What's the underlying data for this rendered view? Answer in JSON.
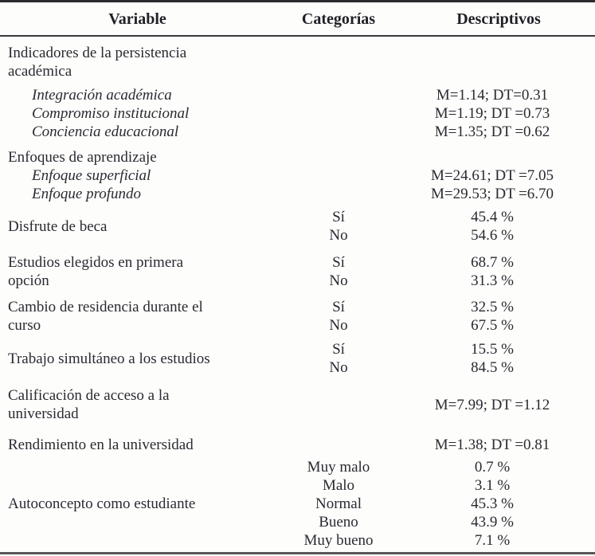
{
  "header": {
    "variable": "Variable",
    "categorias": "Categorías",
    "descriptivos": "Descriptivos"
  },
  "groups": [
    {
      "id": "indicadores-persistencia",
      "title_lines": [
        "Indicadores de la persistencia",
        "académica"
      ],
      "items": [
        {
          "label": "Integración académica",
          "desc": "M=1.14; DT=0.31"
        },
        {
          "label": "Compromiso institucional",
          "desc": "M=1.19; DT =0.73"
        },
        {
          "label": "Conciencia educacional",
          "desc": "M=1.35; DT =0.62"
        }
      ]
    },
    {
      "id": "enfoques-aprendizaje",
      "title_lines": [
        "Enfoques de aprendizaje"
      ],
      "items": [
        {
          "label": "Enfoque superficial",
          "desc": "M=24.61; DT =7.05"
        },
        {
          "label": "Enfoque profundo",
          "desc": "M=29.53; DT =6.70"
        }
      ]
    },
    {
      "id": "disfrute-beca",
      "title_lines": [
        "Disfrute de beca"
      ],
      "cats": [
        "Sí",
        "No"
      ],
      "descs": [
        "45.4 %",
        "54.6 %"
      ]
    },
    {
      "id": "estudios-primera-opcion",
      "title_lines": [
        "Estudios elegidos en primera",
        "opción"
      ],
      "cats": [
        "Sí",
        "No"
      ],
      "descs": [
        "68.7 %",
        "31.3 %"
      ]
    },
    {
      "id": "cambio-residencia",
      "title_lines": [
        "Cambio de residencia durante el",
        "curso"
      ],
      "cats": [
        "Sí",
        "No"
      ],
      "descs": [
        "32.5 %",
        "67.5 %"
      ]
    },
    {
      "id": "trabajo-simultaneo",
      "title_lines": [
        "Trabajo simultáneo a los estudios"
      ],
      "cats": [
        "Sí",
        "No"
      ],
      "descs": [
        "15.5 %",
        "84.5 %"
      ]
    },
    {
      "id": "calificacion-acceso",
      "title_lines": [
        "Calificación de acceso a la",
        "universidad"
      ],
      "desc": "M=7.99; DT =1.12"
    },
    {
      "id": "rendimiento-universidad",
      "title_lines": [
        "Rendimiento en la universidad"
      ],
      "desc": "M=1.38; DT =0.81"
    },
    {
      "id": "autoconcepto",
      "title_lines": [
        "Autoconcepto como estudiante"
      ],
      "cats": [
        "Muy malo",
        "Malo",
        "Normal",
        "Bueno",
        "Muy bueno"
      ],
      "descs": [
        "0.7 %",
        "3.1 %",
        "45.3 %",
        "43.9 %",
        "7.1 %"
      ]
    }
  ]
}
